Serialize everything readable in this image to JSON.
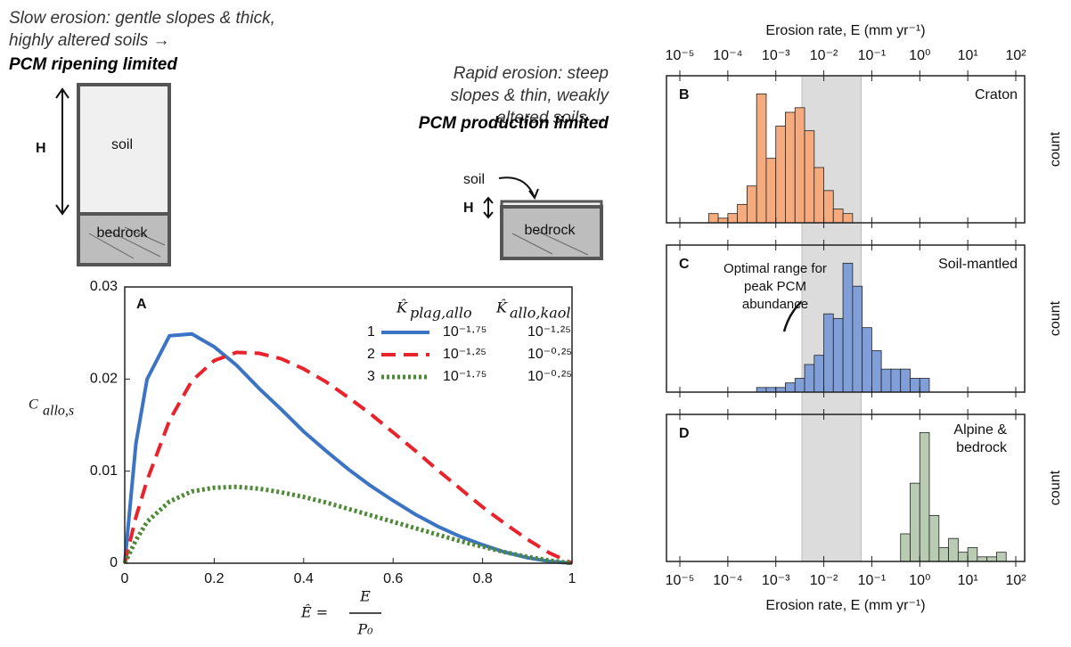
{
  "diagrams": {
    "slow": {
      "caption": "Slow erosion: gentle slopes & thick, highly altered soils →",
      "emphasis": "PCM ripening limited",
      "thickness": "H",
      "soil": "soil",
      "bedrock": "bedrock"
    },
    "rapid": {
      "caption": "Rapid erosion: steep slopes & thin, weakly altered soils →",
      "emphasis": "PCM production limited",
      "thickness": "H",
      "soil": "soil",
      "bedrock": "bedrock"
    }
  },
  "chart_data": [
    {
      "type": "line",
      "panel_label": "A",
      "ylabel": "C",
      "ylabel_sub": "allo,s",
      "xlabel": "Ê =",
      "xlabel_num": "E",
      "xlabel_den": "P₀",
      "legend_headers": [
        {
          "symbol": "K̂",
          "sub": "plag,allo"
        },
        {
          "symbol": "K̂",
          "sub": "allo,kaol"
        }
      ],
      "x": [
        0,
        0.025,
        0.05,
        0.1,
        0.15,
        0.2,
        0.25,
        0.3,
        0.35,
        0.4,
        0.45,
        0.5,
        0.55,
        0.6,
        0.65,
        0.7,
        0.75,
        0.8,
        0.85,
        0.9,
        0.95,
        1
      ],
      "series": [
        {
          "name": "1",
          "color": "#3b74c4",
          "style": "solid",
          "params": [
            "10⁻¹·⁷⁵",
            "10⁻¹·²⁵"
          ],
          "values": [
            0,
            0.013,
            0.02,
            0.0247,
            0.0249,
            0.0235,
            0.0215,
            0.019,
            0.0167,
            0.0143,
            0.0122,
            0.0102,
            0.0084,
            0.0068,
            0.0053,
            0.004,
            0.0029,
            0.002,
            0.0012,
            0.0006,
            0.0002,
            0
          ]
        },
        {
          "name": "2",
          "color": "#e8232b",
          "style": "dashed",
          "params": [
            "10⁻¹·²⁵",
            "10⁻⁰·²⁵"
          ],
          "values": [
            0,
            0.005,
            0.009,
            0.0155,
            0.0198,
            0.022,
            0.0229,
            0.0228,
            0.0222,
            0.0211,
            0.0197,
            0.018,
            0.0162,
            0.0142,
            0.0122,
            0.0101,
            0.0081,
            0.0061,
            0.0043,
            0.0026,
            0.0011,
            0
          ]
        },
        {
          "name": "3",
          "color": "#4e8a36",
          "style": "dotted",
          "params": [
            "10⁻¹·⁷⁵",
            "10⁻⁰·²⁵"
          ],
          "values": [
            0,
            0.0025,
            0.0045,
            0.0067,
            0.0078,
            0.0082,
            0.0083,
            0.0081,
            0.0077,
            0.0072,
            0.0066,
            0.0059,
            0.0052,
            0.0045,
            0.0038,
            0.0031,
            0.0024,
            0.0018,
            0.0012,
            0.0007,
            0.0003,
            0
          ]
        }
      ],
      "xlim": [
        0,
        1
      ],
      "xticks": [
        0,
        0.2,
        0.4,
        0.6,
        0.8,
        1
      ],
      "ylim": [
        0,
        0.03
      ],
      "yticks": [
        0,
        0.01,
        0.02,
        0.03
      ]
    },
    {
      "type": "histogram",
      "panel_label": "B",
      "title": "Craton",
      "ylabel": "count",
      "xlabel": "Erosion rate, E (mm yr⁻¹)",
      "xscale": "log",
      "xlim": [
        1e-05,
        100
      ],
      "xticks": [
        {
          "value": 1e-05,
          "label": "10⁻⁵"
        },
        {
          "value": 0.0001,
          "label": "10⁻⁴"
        },
        {
          "value": 0.001,
          "label": "10⁻³"
        },
        {
          "value": 0.01,
          "label": "10⁻²"
        },
        {
          "value": 0.1,
          "label": "10⁻¹"
        },
        {
          "value": 1,
          "label": "10⁰"
        },
        {
          "value": 10,
          "label": "10¹"
        },
        {
          "value": 100,
          "label": "10²"
        }
      ],
      "ylim": [
        0,
        30
      ],
      "color": "#f5ab7e",
      "highlight_range": [
        0.0035,
        0.06
      ],
      "highlight_color": "#dcdcdc",
      "bins": [
        3.98e-05,
        6.31e-05,
        0.0001,
        0.000158,
        0.000251,
        0.000398,
        0.000631,
        0.001,
        0.00158,
        0.00251,
        0.00398,
        0.00631,
        0.01,
        0.0158,
        0.0251,
        0.0398
      ],
      "counts": [
        2,
        1,
        2,
        4,
        8,
        28,
        14,
        21,
        24,
        25,
        20,
        12,
        7,
        3,
        2
      ]
    },
    {
      "type": "histogram",
      "panel_label": "C",
      "title": "Soil-mantled",
      "ylabel": "count",
      "annotation": "Optimal range for peak PCM abundance",
      "xscale": "log",
      "xlim": [
        1e-05,
        100
      ],
      "ylim": [
        0,
        30
      ],
      "color": "#809fd9",
      "bins": [
        0.000398,
        0.000631,
        0.001,
        0.00158,
        0.00251,
        0.00398,
        0.00631,
        0.01,
        0.0158,
        0.0251,
        0.0398,
        0.0631,
        0.1,
        0.158,
        0.251,
        0.398,
        0.631,
        1,
        1.58
      ],
      "counts": [
        1,
        1,
        1,
        2,
        3,
        6,
        8,
        17,
        16,
        28,
        23,
        14,
        9,
        5,
        5,
        5,
        3,
        3
      ]
    },
    {
      "type": "histogram",
      "panel_label": "D",
      "title": "Alpine & bedrock",
      "ylabel": "count",
      "xlabel": "Erosion rate, E (mm yr⁻¹)",
      "xscale": "log",
      "xlim": [
        1e-05,
        100
      ],
      "xticks": [
        {
          "value": 1e-05,
          "label": "10⁻⁵"
        },
        {
          "value": 0.0001,
          "label": "10⁻⁴"
        },
        {
          "value": 0.001,
          "label": "10⁻³"
        },
        {
          "value": 0.01,
          "label": "10⁻²"
        },
        {
          "value": 0.1,
          "label": "10⁻¹"
        },
        {
          "value": 1,
          "label": "10⁰"
        },
        {
          "value": 10,
          "label": "10¹"
        },
        {
          "value": 100,
          "label": "10²"
        }
      ],
      "ylim": [
        0,
        30
      ],
      "color": "#b9cbb2",
      "bins": [
        0.398,
        0.631,
        1,
        1.58,
        2.51,
        3.98,
        6.31,
        10,
        15.8,
        25.1,
        39.8,
        63.1
      ],
      "counts": [
        6,
        17,
        28,
        10,
        3,
        5,
        2,
        3,
        1,
        1,
        2
      ]
    }
  ]
}
